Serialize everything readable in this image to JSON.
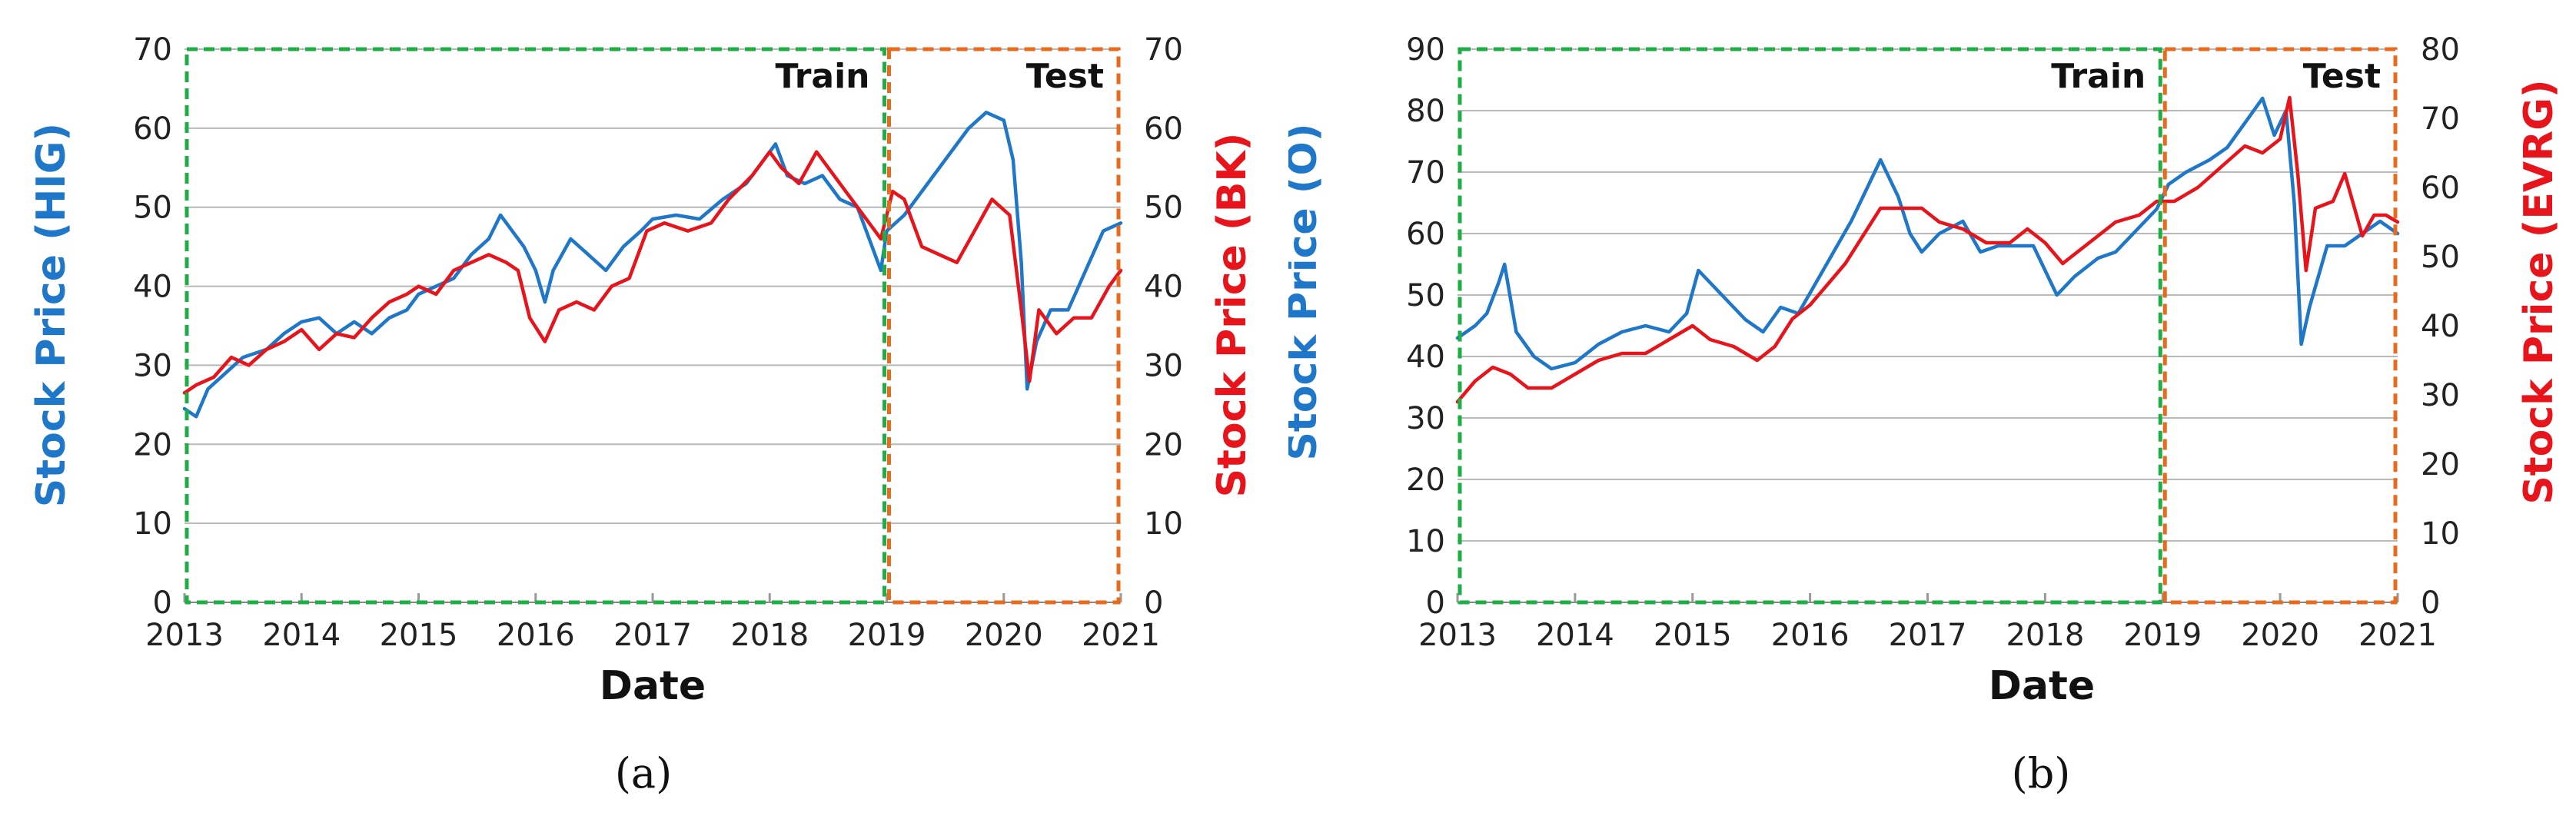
{
  "colors": {
    "blue": "#1F77C9",
    "red": "#E8141B",
    "train_box": "#1FAE46",
    "test_box": "#E86A1C",
    "grid": "#b8b8b8"
  },
  "chart_data": [
    {
      "type": "line",
      "caption": "(a)",
      "xlabel": "Date",
      "ylabel_left": "Stock Price (HIG)",
      "ylabel_right": "Stock Price (BK)",
      "xlim": [
        2013,
        2021
      ],
      "ylim_left": [
        0,
        70
      ],
      "ylim_right": [
        0,
        70
      ],
      "xticks": [
        2013,
        2014,
        2015,
        2016,
        2017,
        2018,
        2019,
        2020,
        2021
      ],
      "yticks_left": [
        0,
        10,
        20,
        30,
        40,
        50,
        60,
        70
      ],
      "yticks_right": [
        0,
        10,
        20,
        30,
        40,
        50,
        60,
        70
      ],
      "grid": "horizontal",
      "regions": [
        {
          "label": "Train",
          "x": [
            2013,
            2019
          ]
        },
        {
          "label": "Test",
          "x": [
            2019,
            2021
          ]
        }
      ],
      "series": [
        {
          "axis": "left",
          "color": "blue",
          "points": [
            [
              2013.0,
              24.5
            ],
            [
              2013.1,
              23.5
            ],
            [
              2013.2,
              27
            ],
            [
              2013.35,
              29
            ],
            [
              2013.5,
              31
            ],
            [
              2013.7,
              32
            ],
            [
              2013.85,
              34
            ],
            [
              2014.0,
              35.5
            ],
            [
              2014.15,
              36
            ],
            [
              2014.3,
              34
            ],
            [
              2014.45,
              35.5
            ],
            [
              2014.6,
              34
            ],
            [
              2014.75,
              36
            ],
            [
              2014.9,
              37
            ],
            [
              2015.0,
              39
            ],
            [
              2015.15,
              40
            ],
            [
              2015.3,
              41
            ],
            [
              2015.45,
              44
            ],
            [
              2015.6,
              46
            ],
            [
              2015.7,
              49
            ],
            [
              2015.8,
              47
            ],
            [
              2015.9,
              45
            ],
            [
              2016.0,
              42
            ],
            [
              2016.08,
              38
            ],
            [
              2016.15,
              42
            ],
            [
              2016.3,
              46
            ],
            [
              2016.45,
              44
            ],
            [
              2016.6,
              42
            ],
            [
              2016.75,
              45
            ],
            [
              2016.9,
              47
            ],
            [
              2017.0,
              48.5
            ],
            [
              2017.2,
              49
            ],
            [
              2017.4,
              48.5
            ],
            [
              2017.6,
              51
            ],
            [
              2017.8,
              53
            ],
            [
              2017.95,
              56
            ],
            [
              2018.05,
              58
            ],
            [
              2018.15,
              54
            ],
            [
              2018.3,
              53
            ],
            [
              2018.45,
              54
            ],
            [
              2018.6,
              51
            ],
            [
              2018.75,
              50
            ],
            [
              2018.85,
              46
            ],
            [
              2018.95,
              42
            ],
            [
              2019.0,
              47
            ],
            [
              2019.15,
              49
            ],
            [
              2019.3,
              52
            ],
            [
              2019.5,
              56
            ],
            [
              2019.7,
              60
            ],
            [
              2019.85,
              62
            ],
            [
              2020.0,
              61
            ],
            [
              2020.08,
              56
            ],
            [
              2020.15,
              43
            ],
            [
              2020.2,
              27
            ],
            [
              2020.28,
              33
            ],
            [
              2020.4,
              37
            ],
            [
              2020.55,
              37
            ],
            [
              2020.7,
              42
            ],
            [
              2020.85,
              47
            ],
            [
              2021.0,
              48
            ]
          ]
        },
        {
          "axis": "right",
          "color": "red",
          "points": [
            [
              2013.0,
              26.5
            ],
            [
              2013.1,
              27.5
            ],
            [
              2013.25,
              28.5
            ],
            [
              2013.4,
              31
            ],
            [
              2013.55,
              30
            ],
            [
              2013.7,
              32
            ],
            [
              2013.85,
              33
            ],
            [
              2014.0,
              34.5
            ],
            [
              2014.15,
              32
            ],
            [
              2014.3,
              34
            ],
            [
              2014.45,
              33.5
            ],
            [
              2014.6,
              36
            ],
            [
              2014.75,
              38
            ],
            [
              2014.9,
              39
            ],
            [
              2015.0,
              40
            ],
            [
              2015.15,
              39
            ],
            [
              2015.3,
              42
            ],
            [
              2015.45,
              43
            ],
            [
              2015.6,
              44
            ],
            [
              2015.75,
              43
            ],
            [
              2015.85,
              42
            ],
            [
              2015.95,
              36
            ],
            [
              2016.08,
              33
            ],
            [
              2016.2,
              37
            ],
            [
              2016.35,
              38
            ],
            [
              2016.5,
              37
            ],
            [
              2016.65,
              40
            ],
            [
              2016.8,
              41
            ],
            [
              2016.95,
              47
            ],
            [
              2017.1,
              48
            ],
            [
              2017.3,
              47
            ],
            [
              2017.5,
              48
            ],
            [
              2017.65,
              51
            ],
            [
              2017.85,
              54
            ],
            [
              2018.0,
              57
            ],
            [
              2018.1,
              55
            ],
            [
              2018.25,
              53
            ],
            [
              2018.4,
              57
            ],
            [
              2018.55,
              54
            ],
            [
              2018.7,
              51
            ],
            [
              2018.85,
              48
            ],
            [
              2018.95,
              46
            ],
            [
              2019.05,
              52
            ],
            [
              2019.15,
              51
            ],
            [
              2019.3,
              45
            ],
            [
              2019.45,
              44
            ],
            [
              2019.6,
              43
            ],
            [
              2019.75,
              47
            ],
            [
              2019.9,
              51
            ],
            [
              2020.05,
              49
            ],
            [
              2020.15,
              37
            ],
            [
              2020.22,
              28
            ],
            [
              2020.3,
              37
            ],
            [
              2020.45,
              34
            ],
            [
              2020.6,
              36
            ],
            [
              2020.75,
              36
            ],
            [
              2020.9,
              40
            ],
            [
              2021.0,
              42
            ]
          ]
        }
      ]
    },
    {
      "type": "line",
      "caption": "(b)",
      "xlabel": "Date",
      "ylabel_left": "Stock Price (O)",
      "ylabel_right": "Stock Price (EVRG)",
      "xlim": [
        2013,
        2021
      ],
      "ylim_left": [
        0,
        90
      ],
      "ylim_right": [
        0,
        80
      ],
      "xticks": [
        2013,
        2014,
        2015,
        2016,
        2017,
        2018,
        2019,
        2020,
        2021
      ],
      "yticks_left": [
        0,
        10,
        20,
        30,
        40,
        50,
        60,
        70,
        80,
        90
      ],
      "yticks_right": [
        0,
        10,
        20,
        30,
        40,
        50,
        60,
        70,
        80
      ],
      "grid": "horizontal",
      "regions": [
        {
          "label": "Train",
          "x": [
            2013,
            2019
          ]
        },
        {
          "label": "Test",
          "x": [
            2019,
            2021
          ]
        }
      ],
      "series": [
        {
          "axis": "left",
          "color": "blue",
          "points": [
            [
              2013.0,
              43
            ],
            [
              2013.15,
              45
            ],
            [
              2013.25,
              47
            ],
            [
              2013.35,
              52
            ],
            [
              2013.4,
              55
            ],
            [
              2013.5,
              44
            ],
            [
              2013.65,
              40
            ],
            [
              2013.8,
              38
            ],
            [
              2014.0,
              39
            ],
            [
              2014.2,
              42
            ],
            [
              2014.4,
              44
            ],
            [
              2014.6,
              45
            ],
            [
              2014.8,
              44
            ],
            [
              2014.95,
              47
            ],
            [
              2015.05,
              54
            ],
            [
              2015.15,
              52
            ],
            [
              2015.3,
              49
            ],
            [
              2015.45,
              46
            ],
            [
              2015.6,
              44
            ],
            [
              2015.75,
              48
            ],
            [
              2015.9,
              47
            ],
            [
              2016.05,
              52
            ],
            [
              2016.2,
              57
            ],
            [
              2016.35,
              62
            ],
            [
              2016.5,
              68
            ],
            [
              2016.6,
              72
            ],
            [
              2016.75,
              66
            ],
            [
              2016.85,
              60
            ],
            [
              2016.95,
              57
            ],
            [
              2017.1,
              60
            ],
            [
              2017.3,
              62
            ],
            [
              2017.45,
              57
            ],
            [
              2017.6,
              58
            ],
            [
              2017.75,
              58
            ],
            [
              2017.9,
              58
            ],
            [
              2018.0,
              54
            ],
            [
              2018.1,
              50
            ],
            [
              2018.25,
              53
            ],
            [
              2018.45,
              56
            ],
            [
              2018.6,
              57
            ],
            [
              2018.8,
              61
            ],
            [
              2018.95,
              64
            ],
            [
              2019.05,
              68
            ],
            [
              2019.2,
              70
            ],
            [
              2019.4,
              72
            ],
            [
              2019.55,
              74
            ],
            [
              2019.7,
              78
            ],
            [
              2019.85,
              82
            ],
            [
              2019.95,
              76
            ],
            [
              2020.05,
              80
            ],
            [
              2020.12,
              65
            ],
            [
              2020.18,
              42
            ],
            [
              2020.25,
              48
            ],
            [
              2020.4,
              58
            ],
            [
              2020.55,
              58
            ],
            [
              2020.7,
              60
            ],
            [
              2020.85,
              62
            ],
            [
              2021.0,
              60
            ]
          ]
        },
        {
          "axis": "right",
          "color": "red",
          "points": [
            [
              2013.0,
              29
            ],
            [
              2013.15,
              32
            ],
            [
              2013.3,
              34
            ],
            [
              2013.45,
              33
            ],
            [
              2013.6,
              31
            ],
            [
              2013.8,
              31
            ],
            [
              2014.0,
              33
            ],
            [
              2014.2,
              35
            ],
            [
              2014.4,
              36
            ],
            [
              2014.6,
              36
            ],
            [
              2014.8,
              38
            ],
            [
              2015.0,
              40
            ],
            [
              2015.15,
              38
            ],
            [
              2015.35,
              37
            ],
            [
              2015.55,
              35
            ],
            [
              2015.7,
              37
            ],
            [
              2015.85,
              41
            ],
            [
              2016.0,
              43
            ],
            [
              2016.15,
              46
            ],
            [
              2016.3,
              49
            ],
            [
              2016.45,
              53
            ],
            [
              2016.6,
              57
            ],
            [
              2016.8,
              57
            ],
            [
              2016.95,
              57
            ],
            [
              2017.1,
              55
            ],
            [
              2017.3,
              54
            ],
            [
              2017.5,
              52
            ],
            [
              2017.7,
              52
            ],
            [
              2017.85,
              54
            ],
            [
              2018.0,
              52
            ],
            [
              2018.15,
              49
            ],
            [
              2018.3,
              51
            ],
            [
              2018.45,
              53
            ],
            [
              2018.6,
              55
            ],
            [
              2018.8,
              56
            ],
            [
              2018.95,
              58
            ],
            [
              2019.1,
              58
            ],
            [
              2019.3,
              60
            ],
            [
              2019.5,
              63
            ],
            [
              2019.7,
              66
            ],
            [
              2019.85,
              65
            ],
            [
              2020.0,
              67
            ],
            [
              2020.08,
              73
            ],
            [
              2020.15,
              62
            ],
            [
              2020.22,
              48
            ],
            [
              2020.3,
              57
            ],
            [
              2020.45,
              58
            ],
            [
              2020.55,
              62
            ],
            [
              2020.7,
              53
            ],
            [
              2020.8,
              56
            ],
            [
              2020.9,
              56
            ],
            [
              2021.0,
              55
            ]
          ]
        }
      ]
    }
  ]
}
